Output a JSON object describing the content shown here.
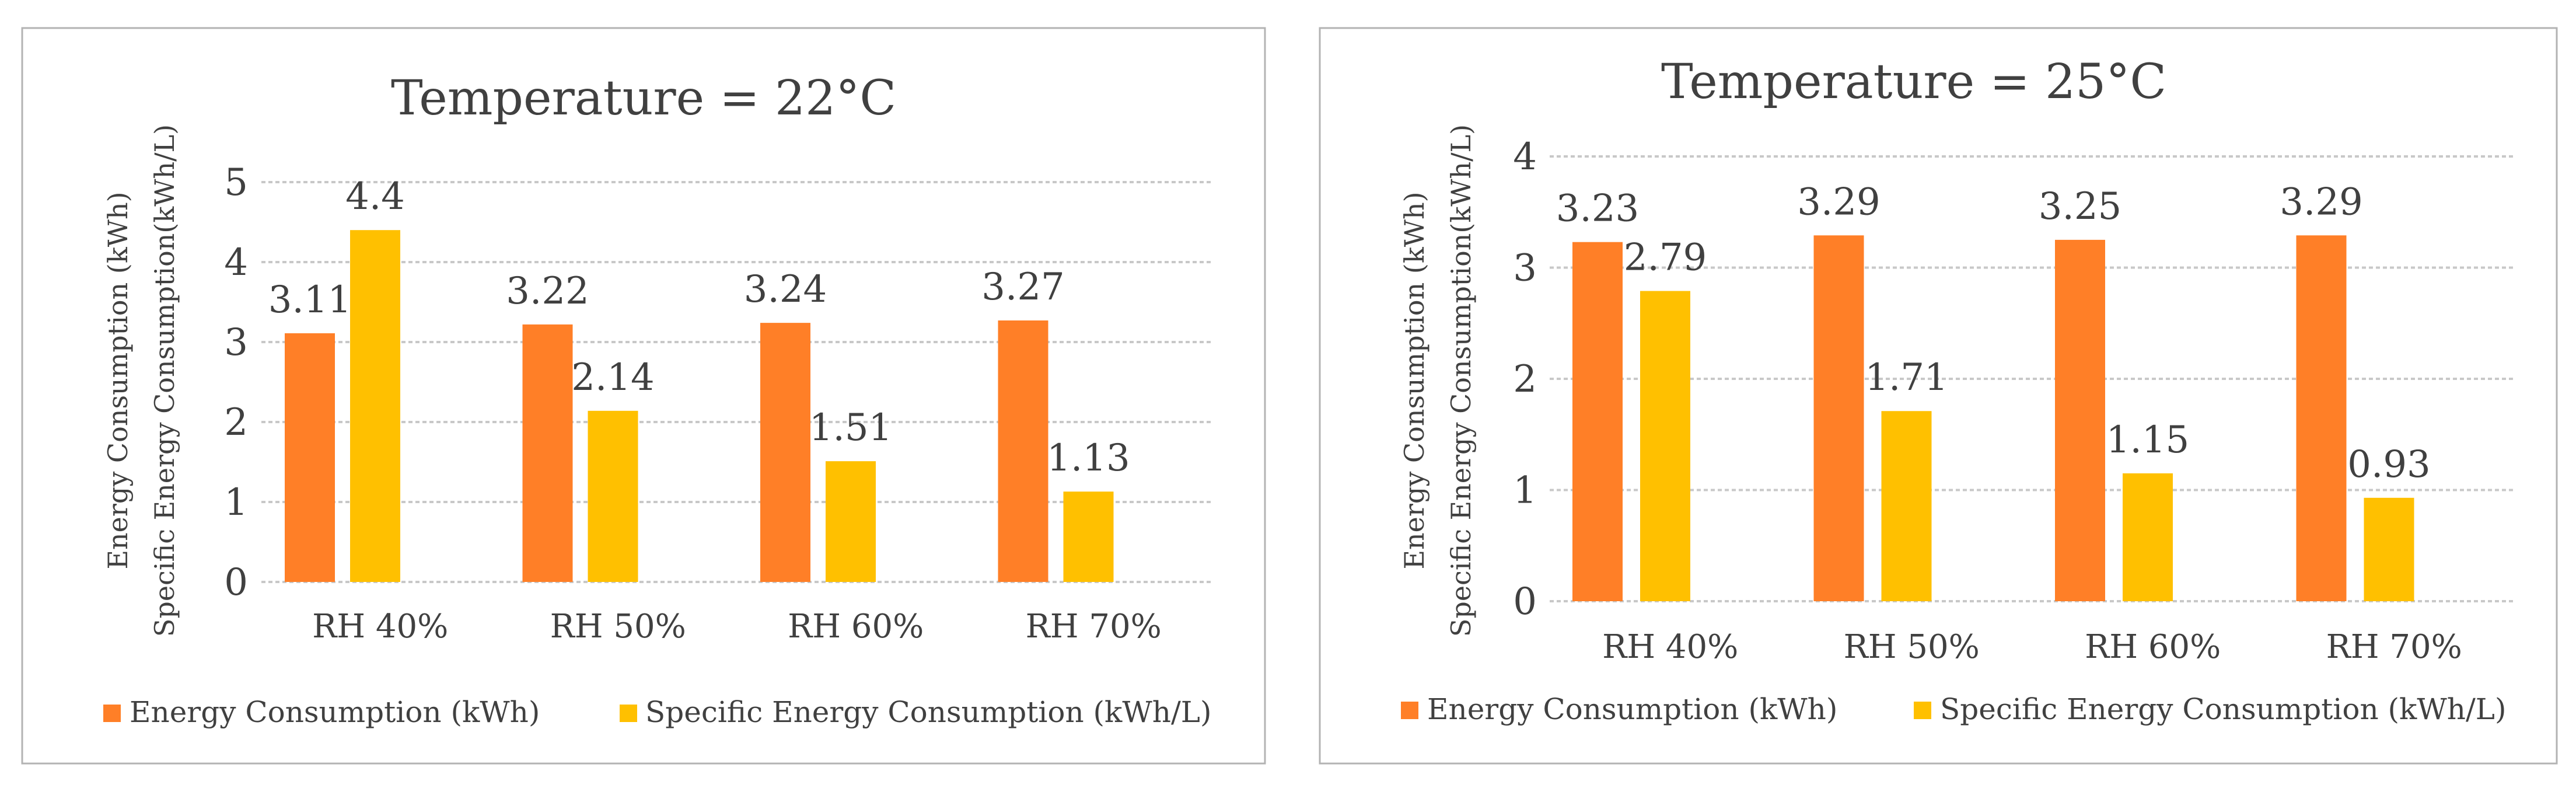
{
  "colors": {
    "energy": "#FF7F27",
    "specific": "#FFC000"
  },
  "chart_data": [
    {
      "type": "bar",
      "title": "Temperature = 22°C",
      "ylabel": [
        "Energy Consumption (kWh)",
        "Specific Energy Consumption(kWh/L)"
      ],
      "categories": [
        "RH 40%",
        "RH 50%",
        "RH 60%",
        "RH 70%"
      ],
      "series": [
        {
          "name": "Energy Consumption (kWh)",
          "values": [
            3.11,
            3.22,
            3.24,
            3.27
          ],
          "labels": [
            "3.11",
            "3.22",
            "3.24",
            "3.27"
          ]
        },
        {
          "name": "Specific Energy Consumption (kWh/L)",
          "values": [
            4.4,
            2.14,
            1.51,
            1.13
          ],
          "labels": [
            "4.4",
            "2.14",
            "1.51",
            "1.13"
          ]
        }
      ],
      "ylim": [
        0,
        5
      ],
      "yticks": [
        0,
        1,
        2,
        3,
        4,
        5
      ],
      "grid": true,
      "legend": "bottom"
    },
    {
      "type": "bar",
      "title": "Temperature = 25°C",
      "ylabel": [
        "Energy Consumption (kWh)",
        "Specific Energy Consumption(kWh/L)"
      ],
      "categories": [
        "RH 40%",
        "RH 50%",
        "RH 60%",
        "RH 70%"
      ],
      "series": [
        {
          "name": "Energy Consumption (kWh)",
          "values": [
            3.23,
            3.29,
            3.25,
            3.29
          ],
          "labels": [
            "3.23",
            "3.29",
            "3.25",
            "3.29"
          ]
        },
        {
          "name": "Specific Energy Consumption (kWh/L)",
          "values": [
            2.79,
            1.71,
            1.15,
            0.93
          ],
          "labels": [
            "2.79",
            "1.71",
            "1.15",
            "0.93"
          ]
        }
      ],
      "ylim": [
        0,
        4
      ],
      "yticks": [
        0,
        1,
        2,
        3,
        4
      ],
      "grid": true,
      "legend": "bottom"
    }
  ]
}
